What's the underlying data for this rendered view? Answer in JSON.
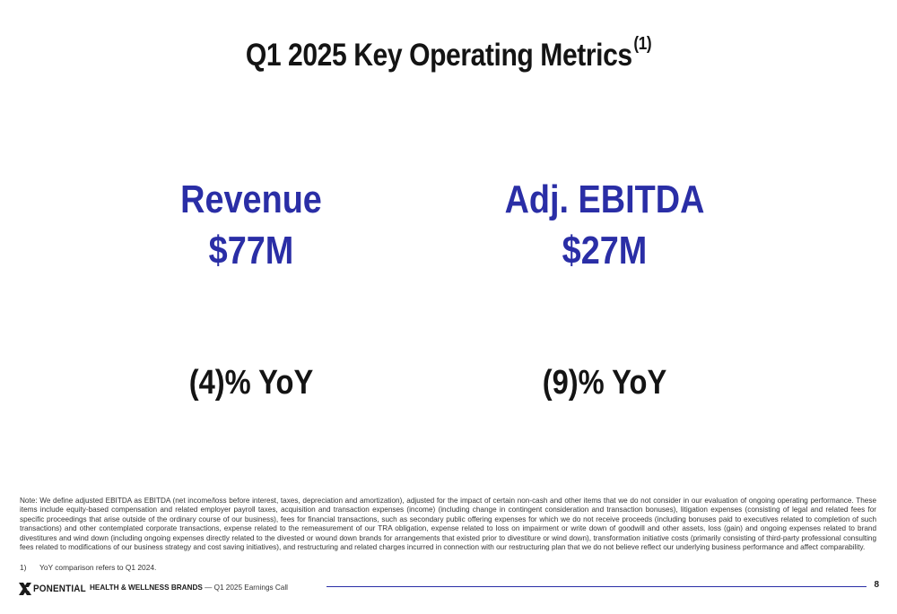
{
  "slide": {
    "title": "Q1 2025 Key Operating Metrics",
    "title_superscript": "(1)",
    "page_number": "8"
  },
  "metrics": [
    {
      "label": "Revenue",
      "value": "$77M",
      "yoy": "(4)% YoY"
    },
    {
      "label": "Adj. EBITDA",
      "value": "$27M",
      "yoy": "(9)% YoY"
    }
  ],
  "note": "Note: We define adjusted EBITDA as EBITDA (net income/loss before interest, taxes, depreciation and amortization), adjusted for the impact of certain non-cash and other items that we do not consider in our evaluation of ongoing operating performance. These items include equity-based compensation and related employer payroll taxes, acquisition and transaction expenses (income) (including change in contingent consideration and transaction bonuses), litigation expenses (consisting of legal and related fees for specific proceedings that arise outside of the ordinary course of our business), fees for financial transactions, such as secondary public offering expenses for which we do not receive proceeds (including bonuses paid to executives related to completion of such transactions) and other contemplated corporate transactions, expense related to the remeasurement of our TRA obligation, expense related to loss on impairment or write down of goodwill and other assets, loss (gain) and ongoing expenses related to brand divestitures and wind down (including ongoing expenses directly related to the divested or wound down brands for arrangements that existed prior to divestiture or wind down), transformation initiative costs (primarily consisting of third-party professional consulting fees related to modifications of our business strategy and cost saving initiatives), and restructuring and related charges incurred in connection with our restructuring plan that we do not believe reflect our underlying business performance and affect comparability.",
  "footnote": {
    "number": "1)",
    "text": "YoY comparison refers to Q1 2024."
  },
  "footer": {
    "logo_text": "PONENTIAL",
    "brand": "HEALTH & WELLNESS BRANDS",
    "separator": " — ",
    "event": "Q1 2025 Earnings Call"
  },
  "colors": {
    "accent": "#2a2ea6",
    "text": "#141414"
  }
}
